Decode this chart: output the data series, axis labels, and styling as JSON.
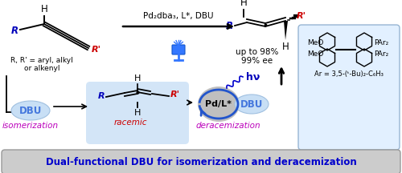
{
  "bg_color": "#ffffff",
  "title_text": "Dual-functional DBU for isomerization and deracemization",
  "title_color": "#0000cc",
  "reaction_condition": "Pd₂dba₃, L*, DBU",
  "yield_text1": "up to 98%",
  "yield_text2": "99% ee",
  "isomerization_label": "isomerization",
  "deracemization_label": "deracemization",
  "racemic_label": "racemic",
  "hv_label": "hν",
  "dbu_color": "#4477dd",
  "purple_color": "#bb00bb",
  "red_color": "#cc0000",
  "blue_color": "#0000cc",
  "R_color": "#0000bb",
  "Rp_color": "#cc0000",
  "box_bg": "#c8dff5",
  "pd_fill": "#aaaaaa",
  "banner_bg": "#cccccc",
  "lig_box_bg": "#ddeeff",
  "lig_box_edge": "#88aacc",
  "arrow_color": "#000000",
  "ar_label": "Ar = 3,5-(ᵗ-Bu)₂-C₆H₃"
}
